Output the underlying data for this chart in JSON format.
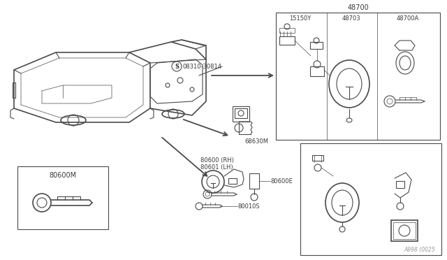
{
  "bg_color": "#ffffff",
  "lc": "#4a4a4a",
  "tc": "#3a3a3a",
  "lw_thick": 1.2,
  "lw_med": 0.8,
  "lw_thin": 0.5,
  "fs_small": 6.0,
  "fs_med": 7.0,
  "fs_large": 8.0,
  "labels": {
    "s_code": "08310-30814",
    "p48700": "48700",
    "p48703": "48703",
    "p48700A": "48700A",
    "p15150Y": "15150Y",
    "p68630M": "68630M",
    "p80600": "80600 (RH)",
    "p80601": "80601 (LH)",
    "p80600E": "80600E",
    "p80010S": "80010S",
    "p80600M": "80600M",
    "watermark": "A998 (0025"
  }
}
